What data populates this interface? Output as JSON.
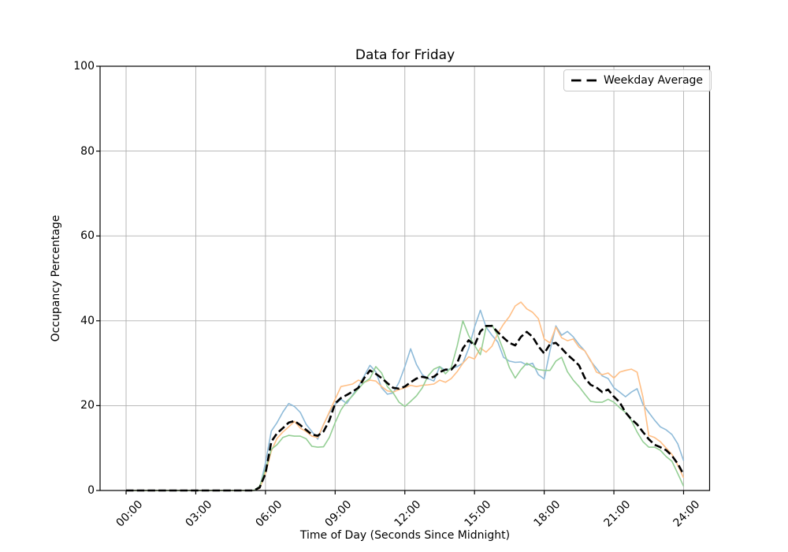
{
  "figure": {
    "background": "#ffffff"
  },
  "chart_data": {
    "type": "line",
    "title": "Data for Friday",
    "xlabel": "Time of Day (Seconds Since Midnight)",
    "ylabel": "Occupancy Percentage",
    "grid": true,
    "legend": {
      "label": "Weekday Average",
      "position": "upper right"
    },
    "x_tick_labels": [
      "00:00",
      "03:00",
      "06:00",
      "09:00",
      "12:00",
      "15:00",
      "18:00",
      "21:00",
      "24:00"
    ],
    "x_tick_hours": [
      0,
      3,
      6,
      9,
      12,
      15,
      18,
      21,
      24
    ],
    "y_tick_labels": [
      "0",
      "20",
      "40",
      "60",
      "80",
      "100"
    ],
    "y_ticks": [
      0,
      20,
      40,
      60,
      80,
      100
    ],
    "xlim_hours": [
      -1.12,
      25.12
    ],
    "ylim": [
      0,
      100
    ],
    "x_step_hours": 0.25,
    "colors": {
      "grid": "#b0b0b0",
      "axes": "#000000",
      "series_blue": "#8fbbd9",
      "series_orange": "#ffbf86",
      "series_green": "#95cf95",
      "average": "#000000"
    },
    "series": [
      {
        "id": "series-1",
        "color": "#8fbbd9",
        "style": "solid",
        "width": 1.6,
        "values": [
          0,
          0,
          0,
          0,
          0,
          0,
          0,
          0,
          0,
          0,
          0,
          0,
          0,
          0,
          0,
          0,
          0,
          0,
          0,
          0,
          0,
          0,
          0,
          0.5,
          6.5,
          14,
          16,
          18.5,
          20.5,
          19.8,
          18.4,
          15.6,
          13.9,
          12.1,
          15.6,
          18.3,
          20.3,
          21.5,
          20.5,
          22.5,
          24.5,
          27,
          29.5,
          28,
          24.2,
          22.7,
          23,
          25.5,
          29.2,
          33.4,
          29.7,
          27.3,
          26.4,
          25.8,
          29.2,
          28.3,
          28.8,
          29.2,
          30,
          33.5,
          38.5,
          42.5,
          38.5,
          36.6,
          35,
          31.4,
          30.5,
          30.2,
          30.3,
          29.6,
          30,
          27.3,
          26.3,
          33,
          38.8,
          36.6,
          37.5,
          36.2,
          34.4,
          32.9,
          30.5,
          28.8,
          27,
          26.4,
          24.2,
          23.2,
          22.1,
          23.2,
          24,
          20.3,
          18.4,
          16.6,
          15,
          14.3,
          13.2,
          11,
          7
        ]
      },
      {
        "id": "series-2",
        "color": "#ffbf86",
        "style": "solid",
        "width": 1.6,
        "values": [
          0,
          0,
          0,
          0,
          0,
          0,
          0,
          0,
          0,
          0,
          0,
          0,
          0,
          0,
          0,
          0,
          0,
          0,
          0,
          0,
          0,
          0,
          0,
          0.5,
          4,
          9.3,
          12.3,
          13.8,
          15,
          16.3,
          14.7,
          13.9,
          12.8,
          12.5,
          15.5,
          18.5,
          21.5,
          24.5,
          24.8,
          25.1,
          26,
          25.5,
          26,
          25.8,
          24.5,
          23.5,
          23.2,
          23.8,
          24.2,
          24.8,
          24.5,
          24.8,
          24.9,
          25.1,
          26,
          25.5,
          26.4,
          28,
          30,
          31.5,
          31,
          33.6,
          32.6,
          34,
          37,
          39.2,
          41,
          43.5,
          44.4,
          42.8,
          42,
          40.5,
          35.7,
          34.8,
          38.5,
          36,
          35.3,
          35.7,
          33.8,
          32.9,
          30.7,
          27.9,
          27.3,
          27.7,
          26.5,
          27.9,
          28.3,
          28.6,
          27.9,
          22,
          13,
          12.5,
          11.5,
          10,
          8.5,
          6,
          3
        ]
      },
      {
        "id": "series-3",
        "color": "#95cf95",
        "style": "solid",
        "width": 1.6,
        "values": [
          0,
          0,
          0,
          0,
          0,
          0,
          0,
          0,
          0,
          0,
          0,
          0,
          0,
          0,
          0,
          0,
          0,
          0,
          0,
          0,
          0,
          0,
          0,
          1,
          5,
          9.7,
          10.8,
          12.5,
          13,
          12.8,
          12.8,
          12.2,
          10.4,
          10.2,
          10.3,
          12.5,
          16,
          19,
          21,
          22.3,
          24,
          25.5,
          26.4,
          29.2,
          27.7,
          24.5,
          23,
          20.8,
          19.8,
          21,
          22.3,
          24.2,
          27,
          28.6,
          29.2,
          27.5,
          29,
          34,
          40,
          36.5,
          34.2,
          32,
          38.5,
          39,
          36.5,
          33,
          29,
          26.5,
          28.5,
          30,
          29.2,
          28.5,
          28.3,
          28.3,
          30.5,
          31.4,
          28,
          26,
          24.5,
          22.7,
          21,
          20.8,
          20.8,
          21.5,
          20.8,
          19.5,
          18.4,
          16.5,
          13.8,
          11.5,
          10.2,
          10.2,
          9.5,
          8,
          6.9,
          4,
          1
        ]
      },
      {
        "id": "weekday-average",
        "color": "#000000",
        "style": "dashed",
        "width": 2.6,
        "values": [
          0,
          0,
          0,
          0,
          0,
          0,
          0,
          0,
          0,
          0,
          0,
          0,
          0,
          0,
          0,
          0,
          0,
          0,
          0,
          0,
          0,
          0,
          0,
          0.7,
          4,
          11.5,
          13.5,
          14.7,
          16,
          16.4,
          15.4,
          14.3,
          13.2,
          12.9,
          13.9,
          16.5,
          20.5,
          21.8,
          22.5,
          23.3,
          24.2,
          26.5,
          28.3,
          27.5,
          26.5,
          25.3,
          24.2,
          24,
          24.5,
          25.5,
          26.4,
          26.8,
          26.5,
          26.8,
          27.9,
          28.5,
          28.5,
          30,
          33.5,
          35.4,
          34.2,
          37.5,
          38.8,
          38.8,
          37.3,
          36,
          34.8,
          34.2,
          36.2,
          37.4,
          36.2,
          34,
          32.3,
          34.5,
          34.8,
          33.5,
          32,
          30.8,
          29.5,
          26.5,
          24.9,
          24.3,
          23.2,
          23.8,
          22.1,
          20.8,
          18.4,
          16.8,
          15.6,
          13.8,
          12.1,
          10.8,
          10.2,
          9.5,
          8.2,
          6.3,
          3.8
        ]
      }
    ]
  }
}
